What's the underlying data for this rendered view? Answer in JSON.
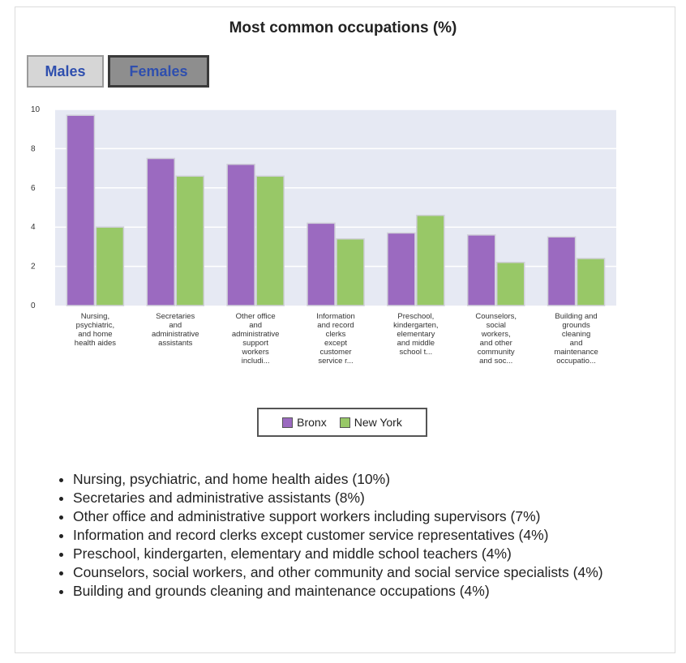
{
  "title": "Most common occupations (%)",
  "tabs": [
    {
      "label": "Males",
      "selected": false
    },
    {
      "label": "Females",
      "selected": true
    }
  ],
  "colors": {
    "bronx": "#9b6ac0",
    "new_york": "#98c867",
    "plot_bg": "#e6e9f3",
    "gridline": "#ffffff",
    "tab_label": "#2f4fae"
  },
  "chart_data": {
    "type": "bar",
    "title": "Most common occupations (%)",
    "xlabel": "",
    "ylabel": "",
    "ylim": [
      0,
      10
    ],
    "yticks": [
      0,
      2,
      4,
      6,
      8,
      10
    ],
    "grid": true,
    "legend_position": "bottom",
    "categories": [
      [
        "Nursing,",
        "psychiatric,",
        "and home",
        "health aides"
      ],
      [
        "Secretaries",
        "and",
        "administrative",
        "assistants"
      ],
      [
        "Other office",
        "and",
        "administrative",
        "support",
        "workers",
        "includi..."
      ],
      [
        "Information",
        "and record",
        "clerks",
        "except",
        "customer",
        "service r..."
      ],
      [
        "Preschool,",
        "kindergarten,",
        "elementary",
        "and middle",
        "school t..."
      ],
      [
        "Counselors,",
        "social",
        "workers,",
        "and other",
        "community",
        "and soc..."
      ],
      [
        "Building and",
        "grounds",
        "cleaning",
        "and",
        "maintenance",
        "occupatio..."
      ]
    ],
    "series": [
      {
        "name": "Bronx",
        "values": [
          9.7,
          7.5,
          7.2,
          4.2,
          3.7,
          3.6,
          3.5
        ]
      },
      {
        "name": "New York",
        "values": [
          4.0,
          6.6,
          6.6,
          3.4,
          4.6,
          2.2,
          2.4
        ]
      }
    ]
  },
  "legend": {
    "items": [
      "Bronx",
      "New York"
    ]
  },
  "occupation_list": [
    "Nursing, psychiatric, and home health aides (10%)",
    "Secretaries and administrative assistants (8%)",
    "Other office and administrative support workers including supervisors (7%)",
    "Information and record clerks except customer service representatives (4%)",
    "Preschool, kindergarten, elementary and middle school teachers (4%)",
    "Counselors, social workers, and other community and social service specialists (4%)",
    "Building and grounds cleaning and maintenance occupations (4%)"
  ]
}
